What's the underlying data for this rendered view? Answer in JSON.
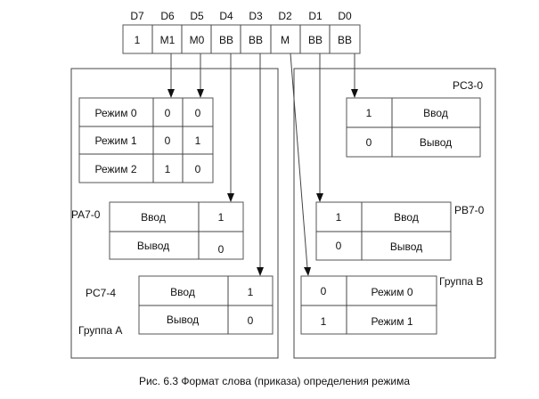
{
  "register": {
    "bit_labels": [
      "D7",
      "D6",
      "D5",
      "D4",
      "D3",
      "D2",
      "D1",
      "D0"
    ],
    "cells": [
      "1",
      "M1",
      "M0",
      "BB",
      "BB",
      "M",
      "BB",
      "BB"
    ]
  },
  "group_a": {
    "label": "Группа А",
    "mode_table": [
      [
        "Режим 0",
        "0",
        "0"
      ],
      [
        "Режим 1",
        "0",
        "1"
      ],
      [
        "Режим 2",
        "1",
        "0"
      ]
    ],
    "pa": {
      "label": "PA7-0",
      "rows": [
        [
          "Ввод",
          "1"
        ],
        [
          "Вывод",
          "0"
        ]
      ]
    },
    "pc_hi": {
      "label": "PC7-4",
      "rows": [
        [
          "Ввод",
          "1"
        ],
        [
          "Вывод",
          "0"
        ]
      ]
    }
  },
  "group_b": {
    "label": "Группа В",
    "pc_lo": {
      "label": "PC3-0",
      "rows": [
        [
          "1",
          "Ввод"
        ],
        [
          "0",
          "Вывод"
        ]
      ]
    },
    "pb": {
      "label": "PB7-0",
      "rows": [
        [
          "1",
          "Ввод"
        ],
        [
          "0",
          "Вывод"
        ]
      ]
    },
    "mode_table": [
      [
        "0",
        "Режим 0"
      ],
      [
        "1",
        "Режим 1"
      ]
    ]
  },
  "caption": "Рис. 6.3 Формат слова (приказа) определения режима"
}
